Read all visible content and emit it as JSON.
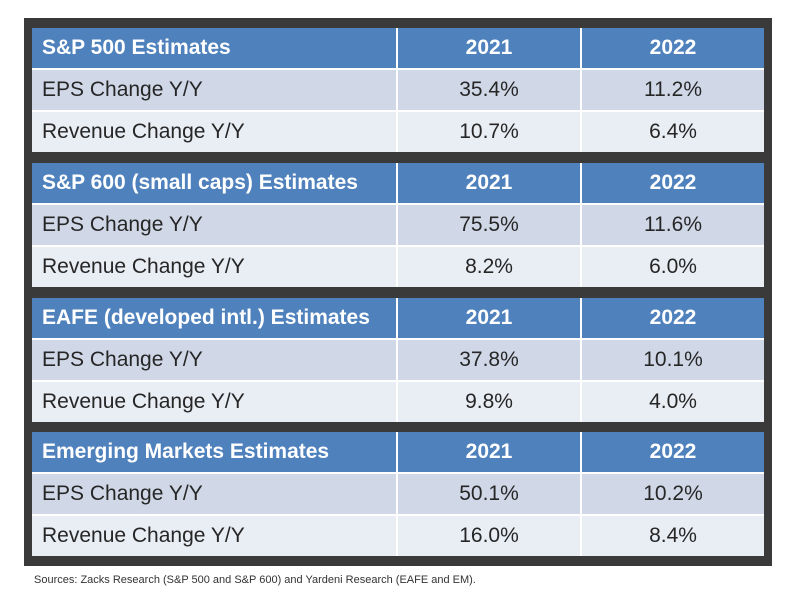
{
  "tables": [
    {
      "title": "S&P 500 Estimates",
      "years": [
        "2021",
        "2022"
      ],
      "rows": [
        {
          "label": "EPS Change Y/Y",
          "values": [
            "35.4%",
            "11.2%"
          ]
        },
        {
          "label": "Revenue Change Y/Y",
          "values": [
            "10.7%",
            "6.4%"
          ]
        }
      ]
    },
    {
      "title": "S&P 600 (small caps) Estimates",
      "years": [
        "2021",
        "2022"
      ],
      "rows": [
        {
          "label": "EPS Change Y/Y",
          "values": [
            "75.5%",
            "11.6%"
          ]
        },
        {
          "label": "Revenue Change Y/Y",
          "values": [
            "8.2%",
            "6.0%"
          ]
        }
      ]
    },
    {
      "title": "EAFE (developed intl.) Estimates",
      "years": [
        "2021",
        "2022"
      ],
      "rows": [
        {
          "label": "EPS Change Y/Y",
          "values": [
            "37.8%",
            "10.1%"
          ]
        },
        {
          "label": "Revenue Change Y/Y",
          "values": [
            "9.8%",
            "4.0%"
          ]
        }
      ]
    },
    {
      "title": "Emerging Markets Estimates",
      "years": [
        "2021",
        "2022"
      ],
      "rows": [
        {
          "label": "EPS Change Y/Y",
          "values": [
            "50.1%",
            "10.2%"
          ]
        },
        {
          "label": "Revenue Change Y/Y",
          "values": [
            "16.0%",
            "8.4%"
          ]
        }
      ]
    }
  ],
  "source": "Sources: Zacks Research (S&P 500 and S&P 600) and Yardeni Research (EAFE and EM).",
  "colors": {
    "header": "#4f81bd",
    "row_alt_1": "#d0d8e8",
    "row_alt_2": "#e9edf4",
    "frame": "#3a3a3a"
  }
}
